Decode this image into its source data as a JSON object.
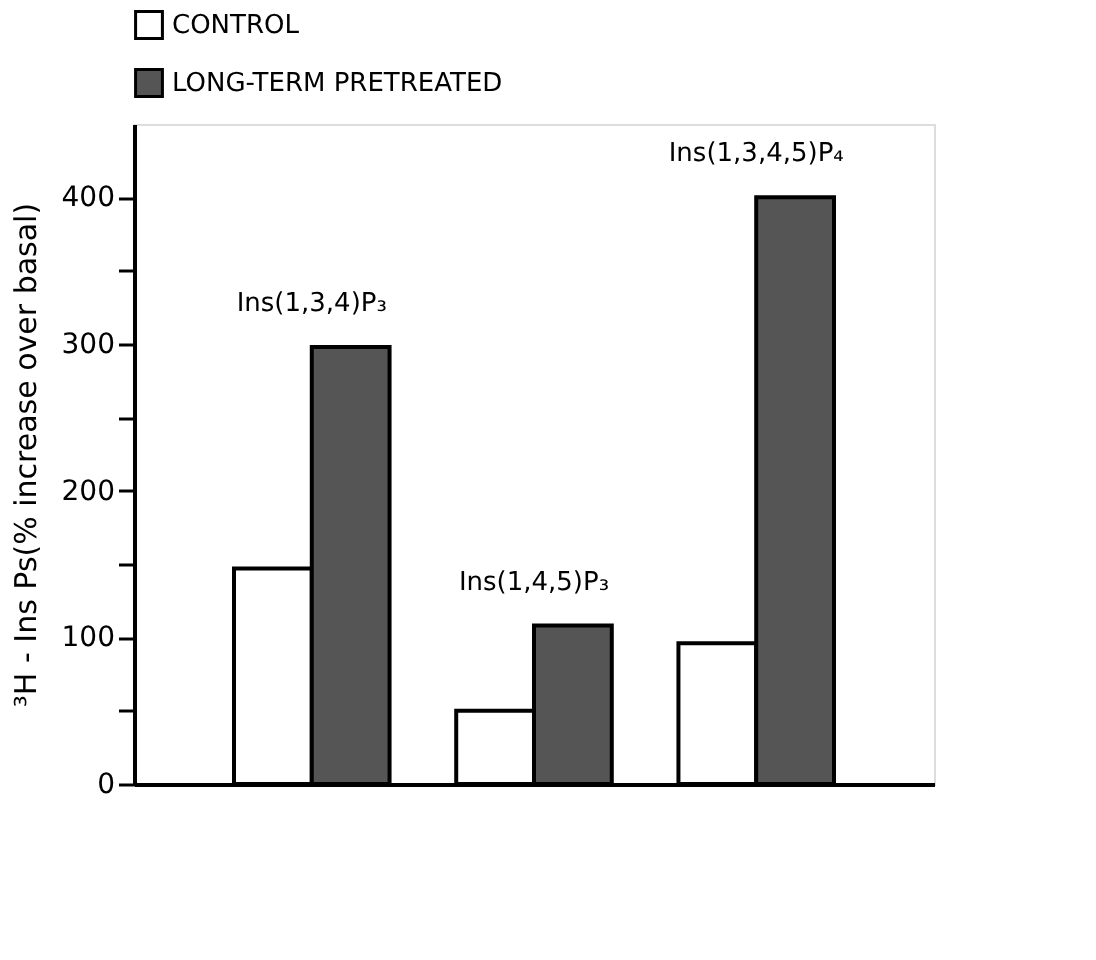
{
  "chart_data": {
    "type": "bar",
    "categories": [
      "Ins(1,3,4)P₃",
      "Ins(1,4,5)P₃",
      "Ins(1,3,4,5)P₄"
    ],
    "series": [
      {
        "name": "CONTROL",
        "color": "#ffffff",
        "values": [
          147,
          50,
          96
        ]
      },
      {
        "name": "LONG-TERM PRETREATED",
        "color": "#555555",
        "values": [
          298,
          108,
          400
        ]
      }
    ],
    "ylabel": "³H - Ins Ps(% increase over basal)",
    "ylim": [
      0,
      450
    ],
    "yticks": [
      0,
      {
        "value": 50,
        "label": null
      },
      100,
      {
        "value": 150,
        "label": null
      },
      200,
      {
        "value": 250,
        "label": null
      },
      300,
      {
        "value": 350,
        "label": null
      },
      400
    ],
    "grid": false,
    "legend": "top left"
  }
}
